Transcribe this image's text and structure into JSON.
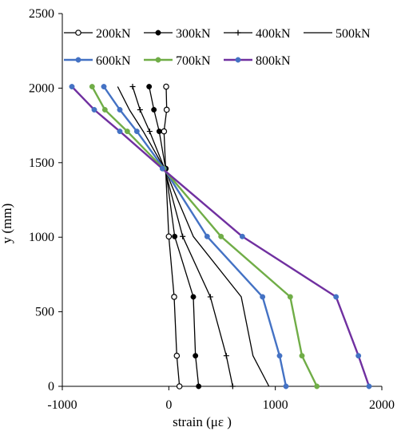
{
  "chart_data": {
    "type": "line",
    "xlabel": "strain (με )",
    "ylabel": "y (mm)",
    "xlim": [
      -1000,
      2000
    ],
    "ylim": [
      0,
      2500
    ],
    "xticks": [
      "-1000",
      "0",
      "1000",
      "2000"
    ],
    "yticks": [
      "0",
      "500",
      "1000",
      "1500",
      "2000",
      "2500"
    ],
    "grid": false,
    "legend_position": "top",
    "series": [
      {
        "name": "200kN",
        "color": "#000000",
        "marker": "open-circle",
        "points": [
          [
            -25,
            2010
          ],
          [
            -20,
            1855
          ],
          [
            -45,
            1710
          ],
          [
            -30,
            1460
          ],
          [
            0,
            1005
          ],
          [
            50,
            600
          ],
          [
            75,
            205
          ],
          [
            100,
            0
          ]
        ]
      },
      {
        "name": "300kN",
        "color": "#000000",
        "marker": "dot",
        "points": [
          [
            -185,
            2010
          ],
          [
            -140,
            1855
          ],
          [
            -90,
            1710
          ],
          [
            -30,
            1460
          ],
          [
            55,
            1005
          ],
          [
            230,
            600
          ],
          [
            250,
            205
          ],
          [
            280,
            0
          ]
        ]
      },
      {
        "name": "400kN",
        "color": "#000000",
        "marker": "plus",
        "points": [
          [
            -340,
            2010
          ],
          [
            -270,
            1855
          ],
          [
            -180,
            1710
          ],
          [
            -40,
            1460
          ],
          [
            130,
            1005
          ],
          [
            390,
            600
          ],
          [
            540,
            205
          ],
          [
            600,
            0
          ]
        ]
      },
      {
        "name": "500kN",
        "color": "#000000",
        "marker": "none",
        "points": [
          [
            -480,
            2010
          ],
          [
            -370,
            1855
          ],
          [
            -240,
            1710
          ],
          [
            -40,
            1460
          ],
          [
            230,
            1005
          ],
          [
            680,
            600
          ],
          [
            790,
            205
          ],
          [
            940,
            0
          ]
        ]
      },
      {
        "name": "600kN",
        "color": "#4472c4",
        "marker": "dot",
        "points": [
          [
            -610,
            2010
          ],
          [
            -460,
            1855
          ],
          [
            -300,
            1710
          ],
          [
            -45,
            1460
          ],
          [
            360,
            1005
          ],
          [
            880,
            600
          ],
          [
            1040,
            205
          ],
          [
            1100,
            0
          ]
        ]
      },
      {
        "name": "700kN",
        "color": "#70ad47",
        "marker": "dot",
        "points": [
          [
            -720,
            2010
          ],
          [
            -600,
            1855
          ],
          [
            -390,
            1710
          ],
          [
            -50,
            1460
          ],
          [
            490,
            1005
          ],
          [
            1140,
            600
          ],
          [
            1250,
            205
          ],
          [
            1390,
            0
          ]
        ]
      },
      {
        "name": "800kN",
        "color": "#7030a0",
        "marker": "dot",
        "marker_color": "#4472c4",
        "points": [
          [
            -910,
            2010
          ],
          [
            -700,
            1855
          ],
          [
            -460,
            1710
          ],
          [
            -60,
            1460
          ],
          [
            690,
            1005
          ],
          [
            1570,
            600
          ],
          [
            1780,
            205
          ],
          [
            1880,
            0
          ]
        ]
      }
    ]
  }
}
